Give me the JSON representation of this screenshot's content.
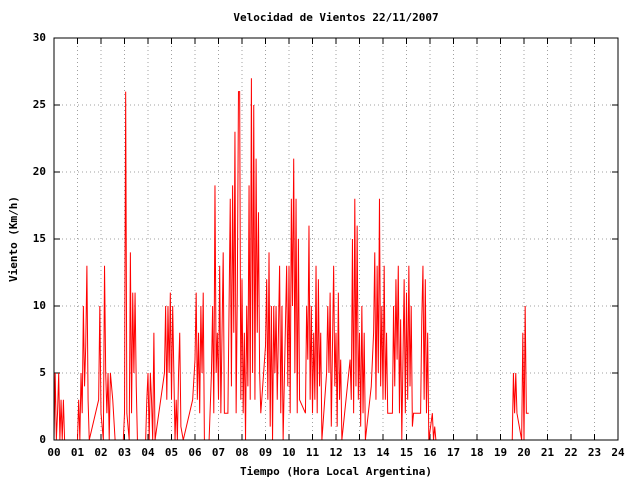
{
  "chart_data": {
    "type": "line",
    "title": "Velocidad de Vientos 22/11/2007",
    "x_label": "Tiempo (Hora Local Argentina)",
    "y_label": "Viento (Km/h)",
    "color": "#ff0000",
    "grid": true,
    "xlim": [
      0,
      24
    ],
    "ylim": [
      0,
      30
    ],
    "xticks": [
      {
        "value": 0,
        "label": "00"
      },
      {
        "value": 1,
        "label": "01"
      },
      {
        "value": 2,
        "label": "02"
      },
      {
        "value": 3,
        "label": "03"
      },
      {
        "value": 4,
        "label": "04"
      },
      {
        "value": 5,
        "label": "05"
      },
      {
        "value": 6,
        "label": "06"
      },
      {
        "value": 7,
        "label": "07"
      },
      {
        "value": 8,
        "label": "08"
      },
      {
        "value": 9,
        "label": "09"
      },
      10,
      11,
      12,
      13,
      14,
      15,
      16,
      17,
      18,
      19,
      20,
      21,
      22,
      23,
      24
    ],
    "yticks": [
      0,
      5,
      10,
      15,
      20,
      25,
      30
    ],
    "x": [
      0,
      0.05,
      0.1,
      0.15,
      0.2,
      0.25,
      0.3,
      0.35,
      0.4,
      0.45,
      1.0,
      1.05,
      1.1,
      1.15,
      1.2,
      1.25,
      1.3,
      1.35,
      1.4,
      1.45,
      1.5,
      1.9,
      1.95,
      2.0,
      2.1,
      2.15,
      2.2,
      2.25,
      2.3,
      2.35,
      2.4,
      2.5,
      2.6,
      2.95,
      3.0,
      3.05,
      3.1,
      3.2,
      3.25,
      3.3,
      3.35,
      3.4,
      3.45,
      3.5,
      3.55,
      3.9,
      3.95,
      4.0,
      4.05,
      4.1,
      4.15,
      4.2,
      4.25,
      4.3,
      4.7,
      4.75,
      4.8,
      4.85,
      4.9,
      4.95,
      5.0,
      5.05,
      5.1,
      5.15,
      5.2,
      5.25,
      5.3,
      5.35,
      5.4,
      5.5,
      5.9,
      6.0,
      6.05,
      6.1,
      6.15,
      6.2,
      6.25,
      6.3,
      6.35,
      6.4,
      6.6,
      6.7,
      6.75,
      6.8,
      6.85,
      6.9,
      6.95,
      7.0,
      7.05,
      7.1,
      7.15,
      7.2,
      7.25,
      7.4,
      7.5,
      7.55,
      7.6,
      7.65,
      7.7,
      7.75,
      7.8,
      7.85,
      7.9,
      7.95,
      8.0,
      8.05,
      8.1,
      8.15,
      8.2,
      8.25,
      8.3,
      8.35,
      8.4,
      8.45,
      8.5,
      8.55,
      8.6,
      8.65,
      8.7,
      8.75,
      8.8,
      9.0,
      9.05,
      9.1,
      9.15,
      9.2,
      9.25,
      9.3,
      9.35,
      9.4,
      9.45,
      9.5,
      9.6,
      9.65,
      9.7,
      9.75,
      9.9,
      9.95,
      10.0,
      10.05,
      10.1,
      10.15,
      10.2,
      10.25,
      10.3,
      10.35,
      10.4,
      10.45,
      10.7,
      10.75,
      10.8,
      10.85,
      10.9,
      10.95,
      11.0,
      11.05,
      11.1,
      11.15,
      11.2,
      11.25,
      11.3,
      11.35,
      11.4,
      11.6,
      11.65,
      11.7,
      11.75,
      11.8,
      11.9,
      11.95,
      12.0,
      12.05,
      12.1,
      12.15,
      12.2,
      12.25,
      12.6,
      12.65,
      12.7,
      12.75,
      12.8,
      12.85,
      12.9,
      12.95,
      13.0,
      13.05,
      13.1,
      13.15,
      13.2,
      13.25,
      13.5,
      13.6,
      13.65,
      13.7,
      13.75,
      13.8,
      13.85,
      13.9,
      13.95,
      14.0,
      14.05,
      14.1,
      14.15,
      14.2,
      14.4,
      14.45,
      14.5,
      14.55,
      14.6,
      14.65,
      14.7,
      14.75,
      14.8,
      14.9,
      14.95,
      15.0,
      15.05,
      15.1,
      15.15,
      15.2,
      15.25,
      15.3,
      15.6,
      15.65,
      15.7,
      15.75,
      15.8,
      15.85,
      15.9,
      15.95,
      16.1,
      16.15,
      16.2,
      16.25,
      19.5,
      19.55,
      19.6,
      19.65,
      19.7,
      19.9,
      19.95,
      20.0,
      20.05,
      20.1,
      20.2
    ],
    "values": [
      0,
      5,
      0,
      2,
      5,
      0,
      3,
      0,
      3,
      0,
      0,
      3,
      0,
      5,
      2,
      10,
      4,
      7,
      13,
      3,
      0,
      3,
      10,
      2,
      0,
      13,
      5,
      2,
      5,
      0,
      5,
      3,
      0,
      0,
      2,
      26,
      2,
      0,
      14,
      2,
      11,
      5,
      11,
      4,
      0,
      0,
      3,
      5,
      0,
      5,
      3,
      0,
      8,
      0,
      5,
      10,
      3,
      10,
      5,
      11,
      3,
      10,
      5,
      0,
      3,
      0,
      5,
      8,
      1,
      0,
      3,
      6,
      11,
      3,
      8,
      2,
      10,
      5,
      11,
      0,
      0,
      5,
      10,
      2,
      19,
      5,
      8,
      3,
      13,
      2,
      8,
      14,
      2,
      2,
      18,
      4,
      19,
      8,
      23,
      2,
      11,
      26,
      26,
      3,
      12,
      2,
      8,
      0,
      10,
      4,
      19,
      3,
      27,
      5,
      25,
      3,
      21,
      8,
      17,
      5,
      2,
      7,
      12,
      3,
      14,
      1,
      10,
      0,
      10,
      5,
      10,
      3,
      13,
      2,
      10,
      0,
      13,
      4,
      13,
      2,
      18,
      10,
      21,
      5,
      18,
      2,
      15,
      3,
      2,
      10,
      6,
      16,
      3,
      10,
      2,
      8,
      3,
      13,
      2,
      12,
      4,
      8,
      0,
      5,
      10,
      5,
      11,
      1,
      13,
      4,
      8,
      1,
      11,
      3,
      6,
      0,
      6,
      3,
      15,
      2,
      18,
      4,
      16,
      3,
      8,
      1,
      10,
      2,
      8,
      0,
      4,
      8,
      14,
      3,
      13,
      5,
      18,
      4,
      10,
      3,
      13,
      3,
      8,
      2,
      2,
      10,
      4,
      12,
      6,
      13,
      2,
      9,
      0,
      12,
      2,
      11,
      3,
      13,
      4,
      10,
      1,
      2,
      2,
      9,
      13,
      3,
      12,
      2,
      8,
      0,
      2,
      0,
      1,
      0,
      0,
      5,
      2,
      5,
      2,
      0,
      8,
      0,
      10,
      2,
      2
    ]
  }
}
